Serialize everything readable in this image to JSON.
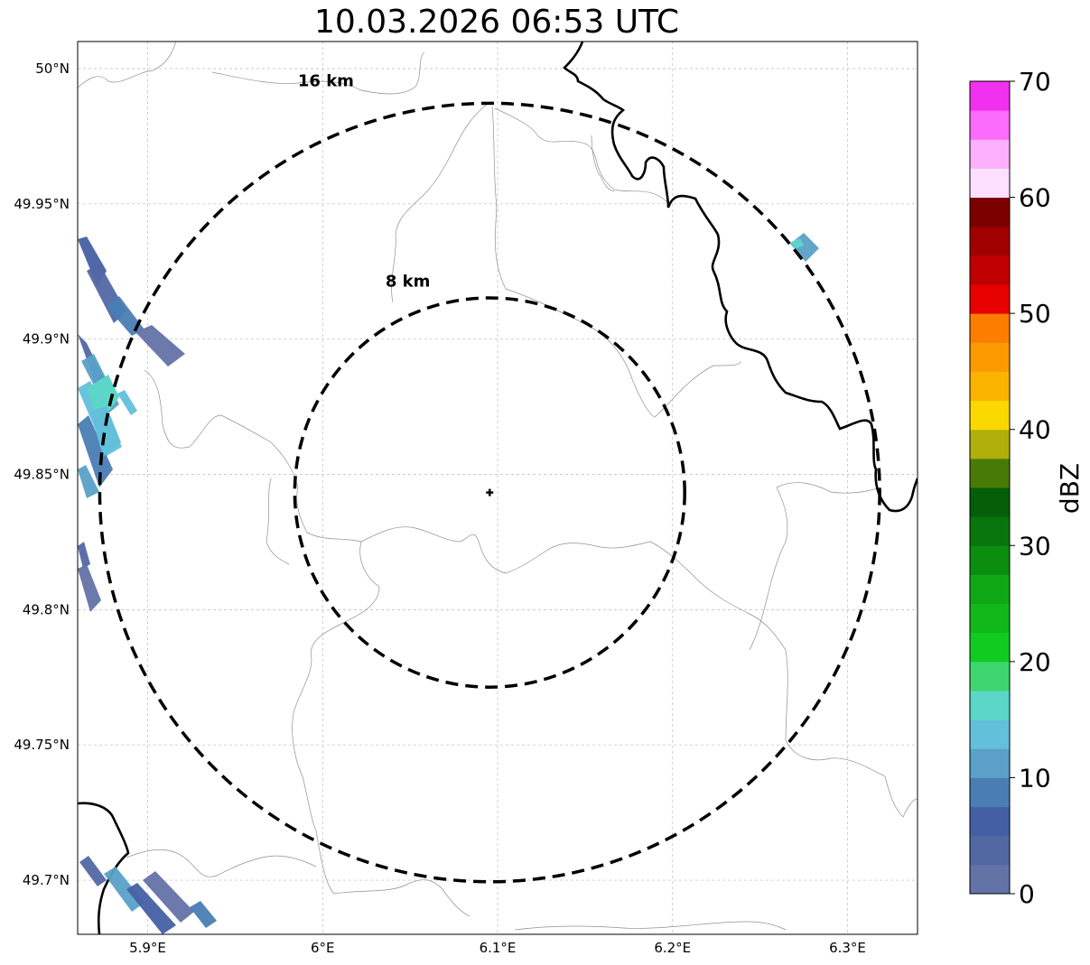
{
  "title": "10.03.2026 06:53 UTC",
  "map": {
    "lon_range": [
      5.86,
      6.34
    ],
    "lat_range": [
      49.68,
      50.01
    ],
    "lon_ticks": [
      {
        "value": 5.9,
        "label": "5.9°E"
      },
      {
        "value": 6.0,
        "label": "6°E"
      },
      {
        "value": 6.1,
        "label": "6.1°E"
      },
      {
        "value": 6.2,
        "label": "6.2°E"
      },
      {
        "value": 6.3,
        "label": "6.3°E"
      }
    ],
    "lat_ticks": [
      {
        "value": 50.0,
        "label": "50°N"
      },
      {
        "value": 49.95,
        "label": "49.95°N"
      },
      {
        "value": 49.9,
        "label": "49.9°N"
      },
      {
        "value": 49.85,
        "label": "49.85°N"
      },
      {
        "value": 49.8,
        "label": "49.8°N"
      },
      {
        "value": 49.75,
        "label": "49.75°N"
      },
      {
        "value": 49.7,
        "label": "49.7°N"
      }
    ],
    "radar_center": {
      "lon": 6.0955,
      "lat": 49.8433
    },
    "rings": [
      {
        "radius_km": 8,
        "label": "8 km"
      },
      {
        "radius_km": 16,
        "label": "16 km"
      }
    ]
  },
  "colorbar": {
    "label": "dBZ",
    "min": 0,
    "max": 70,
    "ticks": [
      0,
      10,
      20,
      30,
      40,
      50,
      60,
      70
    ],
    "colors": [
      "#6373a6",
      "#5268a3",
      "#4460a4",
      "#4a7db3",
      "#5aa0c8",
      "#62c0db",
      "#5cd6c8",
      "#3ed66e",
      "#10cc20",
      "#10b81a",
      "#0fa815",
      "#0b8d0f",
      "#08750c",
      "#045e08",
      "#487a07",
      "#afb00b",
      "#fbd900",
      "#fbb400",
      "#fb9900",
      "#fb7e00",
      "#e60000",
      "#c00000",
      "#a00000",
      "#7a0000",
      "#fde0ff",
      "#fcb0fc",
      "#fc6cfc",
      "#f230f0"
    ]
  }
}
